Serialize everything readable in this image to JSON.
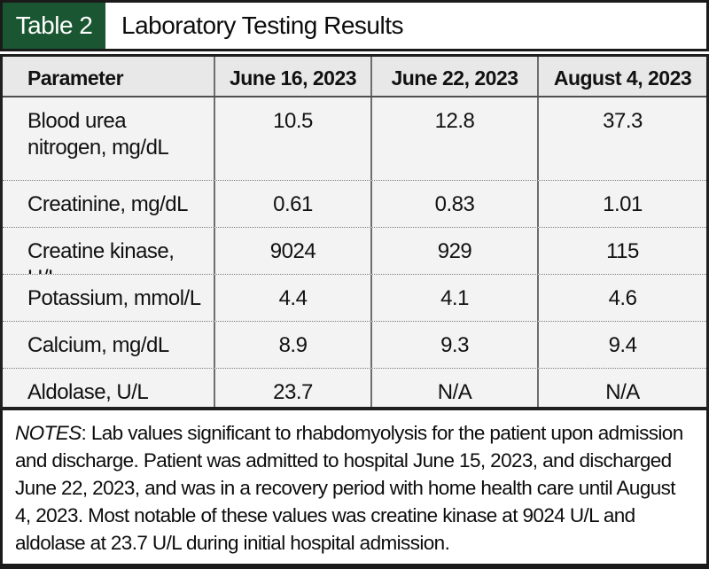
{
  "title_bar": {
    "badge": "Table 2",
    "title": "Laboratory Testing Results"
  },
  "colors": {
    "accent_green": "#1a5632",
    "header_row_bg": "#e8e8e8",
    "body_row_bg": "#f3f3f3",
    "border_black": "#1a1a1a"
  },
  "table": {
    "columns": [
      "Parameter",
      "June 16, 2023",
      "June 22, 2023",
      "August 4, 2023"
    ],
    "rows": [
      {
        "parameter": "Blood urea nitrogen, mg/dL",
        "values": [
          "10.5",
          "12.8",
          "37.3"
        ]
      },
      {
        "parameter": "Creatinine, mg/dL",
        "values": [
          "0.61",
          "0.83",
          "1.01"
        ]
      },
      {
        "parameter": "Creatine kinase, U/L",
        "values": [
          "9024",
          "929",
          "115"
        ]
      },
      {
        "parameter": "Potassium, mmol/L",
        "values": [
          "4.4",
          "4.1",
          "4.6"
        ]
      },
      {
        "parameter": "Calcium, mg/dL",
        "values": [
          "8.9",
          "9.3",
          "9.4"
        ]
      },
      {
        "parameter": "Aldolase, U/L",
        "values": [
          "23.7",
          "N/A",
          "N/A"
        ]
      }
    ]
  },
  "notes": {
    "label": "NOTES",
    "text": ": Lab values significant to rhabdomyolysis for the patient upon admission and discharge. Patient was admitted to hospital June 15, 2023, and discharged June 22, 2023, and was in a recovery period with home health care until August 4, 2023. Most notable of these values was creatine kinase at 9024 U/L and aldolase at 23.7 U/L during initial hospital admission."
  },
  "chart_data": {
    "type": "table",
    "title": "Laboratory Testing Results",
    "columns": [
      "Parameter",
      "June 16, 2023",
      "June 22, 2023",
      "August 4, 2023"
    ],
    "rows": [
      [
        "Blood urea nitrogen, mg/dL",
        "10.5",
        "12.8",
        "37.3"
      ],
      [
        "Creatinine, mg/dL",
        "0.61",
        "0.83",
        "1.01"
      ],
      [
        "Creatine kinase, U/L",
        "9024",
        "929",
        "115"
      ],
      [
        "Potassium, mmol/L",
        "4.4",
        "4.1",
        "4.6"
      ],
      [
        "Calcium, mg/dL",
        "8.9",
        "9.3",
        "9.4"
      ],
      [
        "Aldolase, U/L",
        "23.7",
        "N/A",
        "N/A"
      ]
    ]
  }
}
